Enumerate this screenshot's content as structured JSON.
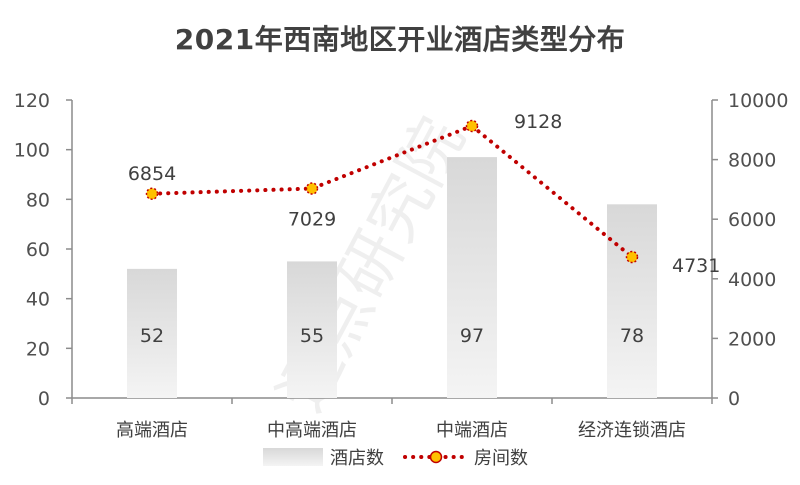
{
  "chart_data": {
    "type": "bar+line",
    "title": "2021年西南地区开业酒店类型分布",
    "categories": [
      "高端酒店",
      "中高端酒店",
      "中端酒店",
      "经济连锁酒店"
    ],
    "series": [
      {
        "name": "酒店数",
        "type": "bar",
        "axis": "left",
        "values": [
          52,
          55,
          97,
          78
        ]
      },
      {
        "name": "房间数",
        "type": "line",
        "axis": "right",
        "values": [
          6854,
          7029,
          9128,
          4731
        ]
      }
    ],
    "y_left": {
      "min": 0,
      "max": 120,
      "ticks": [
        0,
        20,
        40,
        60,
        80,
        100,
        120
      ]
    },
    "y_right": {
      "min": 0,
      "max": 10000,
      "ticks": [
        0,
        2000,
        4000,
        6000,
        8000,
        10000
      ]
    },
    "legend_position": "bottom",
    "watermark": "迈点研究院",
    "colors": {
      "bar_top": "#d8d8d8",
      "bar_bottom": "#f4f4f4",
      "line": "#c00000",
      "marker": "#ffc000",
      "axis": "#8c8c8c",
      "text": "#404040"
    }
  }
}
